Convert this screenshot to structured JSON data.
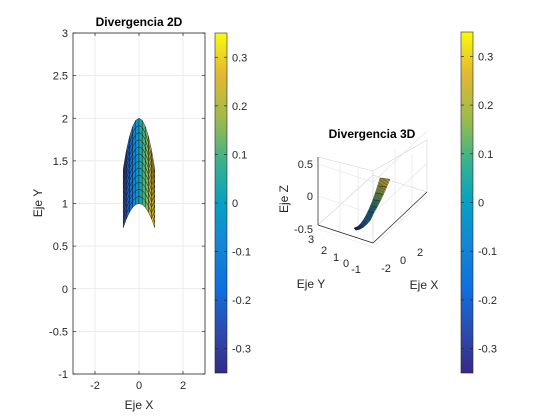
{
  "chart_data": [
    {
      "type": "surface",
      "view": "2D",
      "title": "Divergencia 2D",
      "xlabel": "Eje X",
      "ylabel": "Eje Y",
      "xlim": [
        -3,
        3
      ],
      "ylim": [
        -1,
        3
      ],
      "xticks": [
        "-2",
        "0",
        "2"
      ],
      "yticks": [
        "-1",
        "-0.5",
        "0",
        "0.5",
        "1",
        "1.5",
        "2",
        "2.5",
        "3"
      ],
      "grid": true,
      "colormap": "parula",
      "shape": "parabolic band, x from -0.7 to 0.7, lower edge ~0.7 to 1.0, upper edge ~1.4 to 2.0",
      "colorbar": {
        "ticks": [
          "0.3",
          "0.2",
          "0.1",
          "0",
          "-0.1",
          "-0.2",
          "-0.3"
        ],
        "clim": [
          -0.35,
          0.35
        ]
      }
    },
    {
      "type": "surface",
      "view": "3D",
      "title": "Divergencia 3D",
      "xlabel": "Eje X",
      "ylabel": "Eje Y",
      "zlabel": "Eje Z",
      "xticks": [
        "-2",
        "0",
        "2"
      ],
      "yticks": [
        "3",
        "2",
        "1",
        "0",
        "-1"
      ],
      "zticks": [
        "0.5",
        "0",
        "-0.5"
      ],
      "grid": true,
      "colormap": "parula",
      "colorbar": {
        "ticks": [
          "0.3",
          "0.2",
          "0.1",
          "0",
          "-0.1",
          "-0.2",
          "-0.3"
        ],
        "clim": [
          -0.35,
          0.35
        ]
      }
    }
  ]
}
